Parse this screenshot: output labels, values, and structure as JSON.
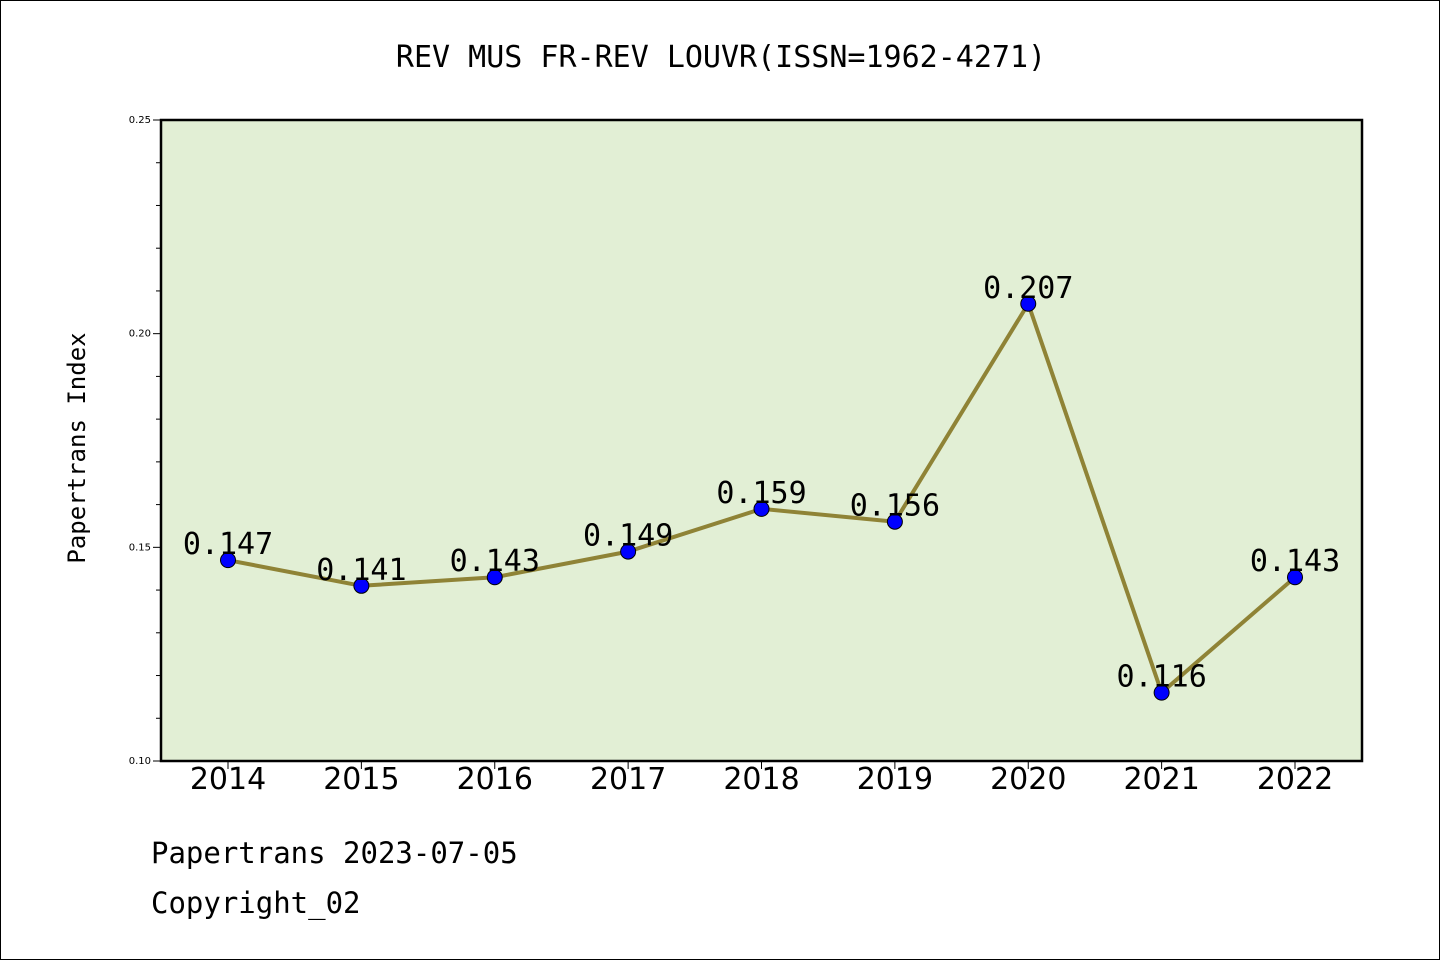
{
  "chart_data": {
    "type": "line",
    "title": "REV MUS FR-REV LOUVR(ISSN=1962-4271)",
    "xlabel": "",
    "ylabel": "Papertrans Index",
    "categories": [
      "2014",
      "2015",
      "2016",
      "2017",
      "2018",
      "2019",
      "2020",
      "2021",
      "2022"
    ],
    "series": [
      {
        "values": [
          0.147,
          0.141,
          0.143,
          0.149,
          0.159,
          0.156,
          0.207,
          0.116,
          0.143
        ],
        "labels": [
          "0.147",
          "0.141",
          "0.143",
          "0.149",
          "0.159",
          "0.156",
          "0.207",
          "0.116",
          "0.143"
        ]
      }
    ],
    "ylim": [
      0.1,
      0.25
    ],
    "yticks": [
      "0.10",
      "0.15",
      "0.20",
      "0.25"
    ],
    "grid": false,
    "colors": {
      "plot_background": "#e2efd5",
      "line": "#8f8336",
      "marker": "#0000ff"
    }
  },
  "footer": {
    "line1": "Papertrans 2023-07-05",
    "line2": "Copyright_02"
  }
}
